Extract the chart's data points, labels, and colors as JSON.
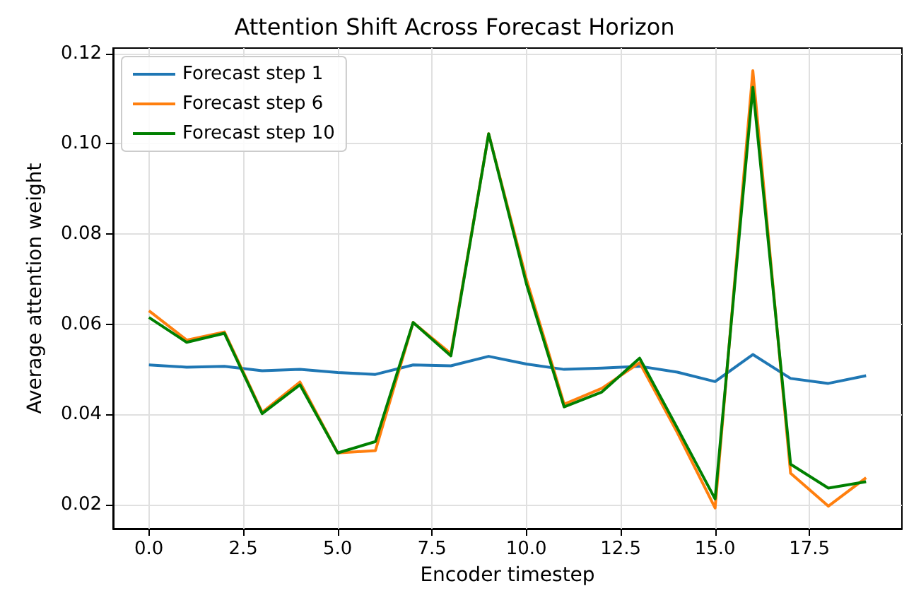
{
  "chart_data": {
    "type": "line",
    "title": "Attention Shift Across Forecast Horizon",
    "xlabel": "Encoder timestep",
    "ylabel": "Average attention weight",
    "x": [
      0,
      1,
      2,
      3,
      4,
      5,
      6,
      7,
      8,
      9,
      10,
      11,
      12,
      13,
      14,
      15,
      16,
      17,
      18,
      19
    ],
    "series": [
      {
        "name": "Forecast step 1",
        "color": "#1f77b4",
        "values": [
          0.051,
          0.0505,
          0.0507,
          0.0497,
          0.05,
          0.0493,
          0.0489,
          0.051,
          0.0508,
          0.0529,
          0.0512,
          0.05,
          0.0503,
          0.0507,
          0.0494,
          0.0473,
          0.0533,
          0.048,
          0.0469,
          0.0486
        ]
      },
      {
        "name": "Forecast step 6",
        "color": "#ff7f0e",
        "values": [
          0.063,
          0.0565,
          0.0583,
          0.0405,
          0.0472,
          0.0315,
          0.032,
          0.0604,
          0.0535,
          0.1022,
          0.07,
          0.0423,
          0.0458,
          0.0515,
          0.036,
          0.0193,
          0.1162,
          0.027,
          0.0197,
          0.026
        ]
      },
      {
        "name": "Forecast step 10",
        "color": "#008000",
        "values": [
          0.0615,
          0.056,
          0.058,
          0.0402,
          0.0466,
          0.0315,
          0.034,
          0.0604,
          0.053,
          0.1022,
          0.069,
          0.0417,
          0.045,
          0.0525,
          0.037,
          0.0213,
          0.1125,
          0.029,
          0.0237,
          0.0251
        ]
      }
    ],
    "xlim": [
      -0.95,
      19.95
    ],
    "xticks": [
      {
        "value": 0,
        "label": "0.0"
      },
      {
        "value": 2.5,
        "label": "2.5"
      },
      {
        "value": 5,
        "label": "5.0"
      },
      {
        "value": 7.5,
        "label": "7.5"
      },
      {
        "value": 10,
        "label": "10.0"
      },
      {
        "value": 12.5,
        "label": "12.5"
      },
      {
        "value": 15,
        "label": "15.0"
      },
      {
        "value": 17.5,
        "label": "17.5"
      }
    ],
    "ylim": [
      0.0147,
      0.1212
    ],
    "yticks": [
      {
        "value": 0.02,
        "label": "0.02"
      },
      {
        "value": 0.04,
        "label": "0.04"
      },
      {
        "value": 0.06,
        "label": "0.06"
      },
      {
        "value": 0.08,
        "label": "0.08"
      },
      {
        "value": 0.1,
        "label": "0.10"
      },
      {
        "value": 0.12,
        "label": "0.12"
      }
    ],
    "grid": true,
    "legend": "top left",
    "marker": "none",
    "line_style": "solid"
  }
}
